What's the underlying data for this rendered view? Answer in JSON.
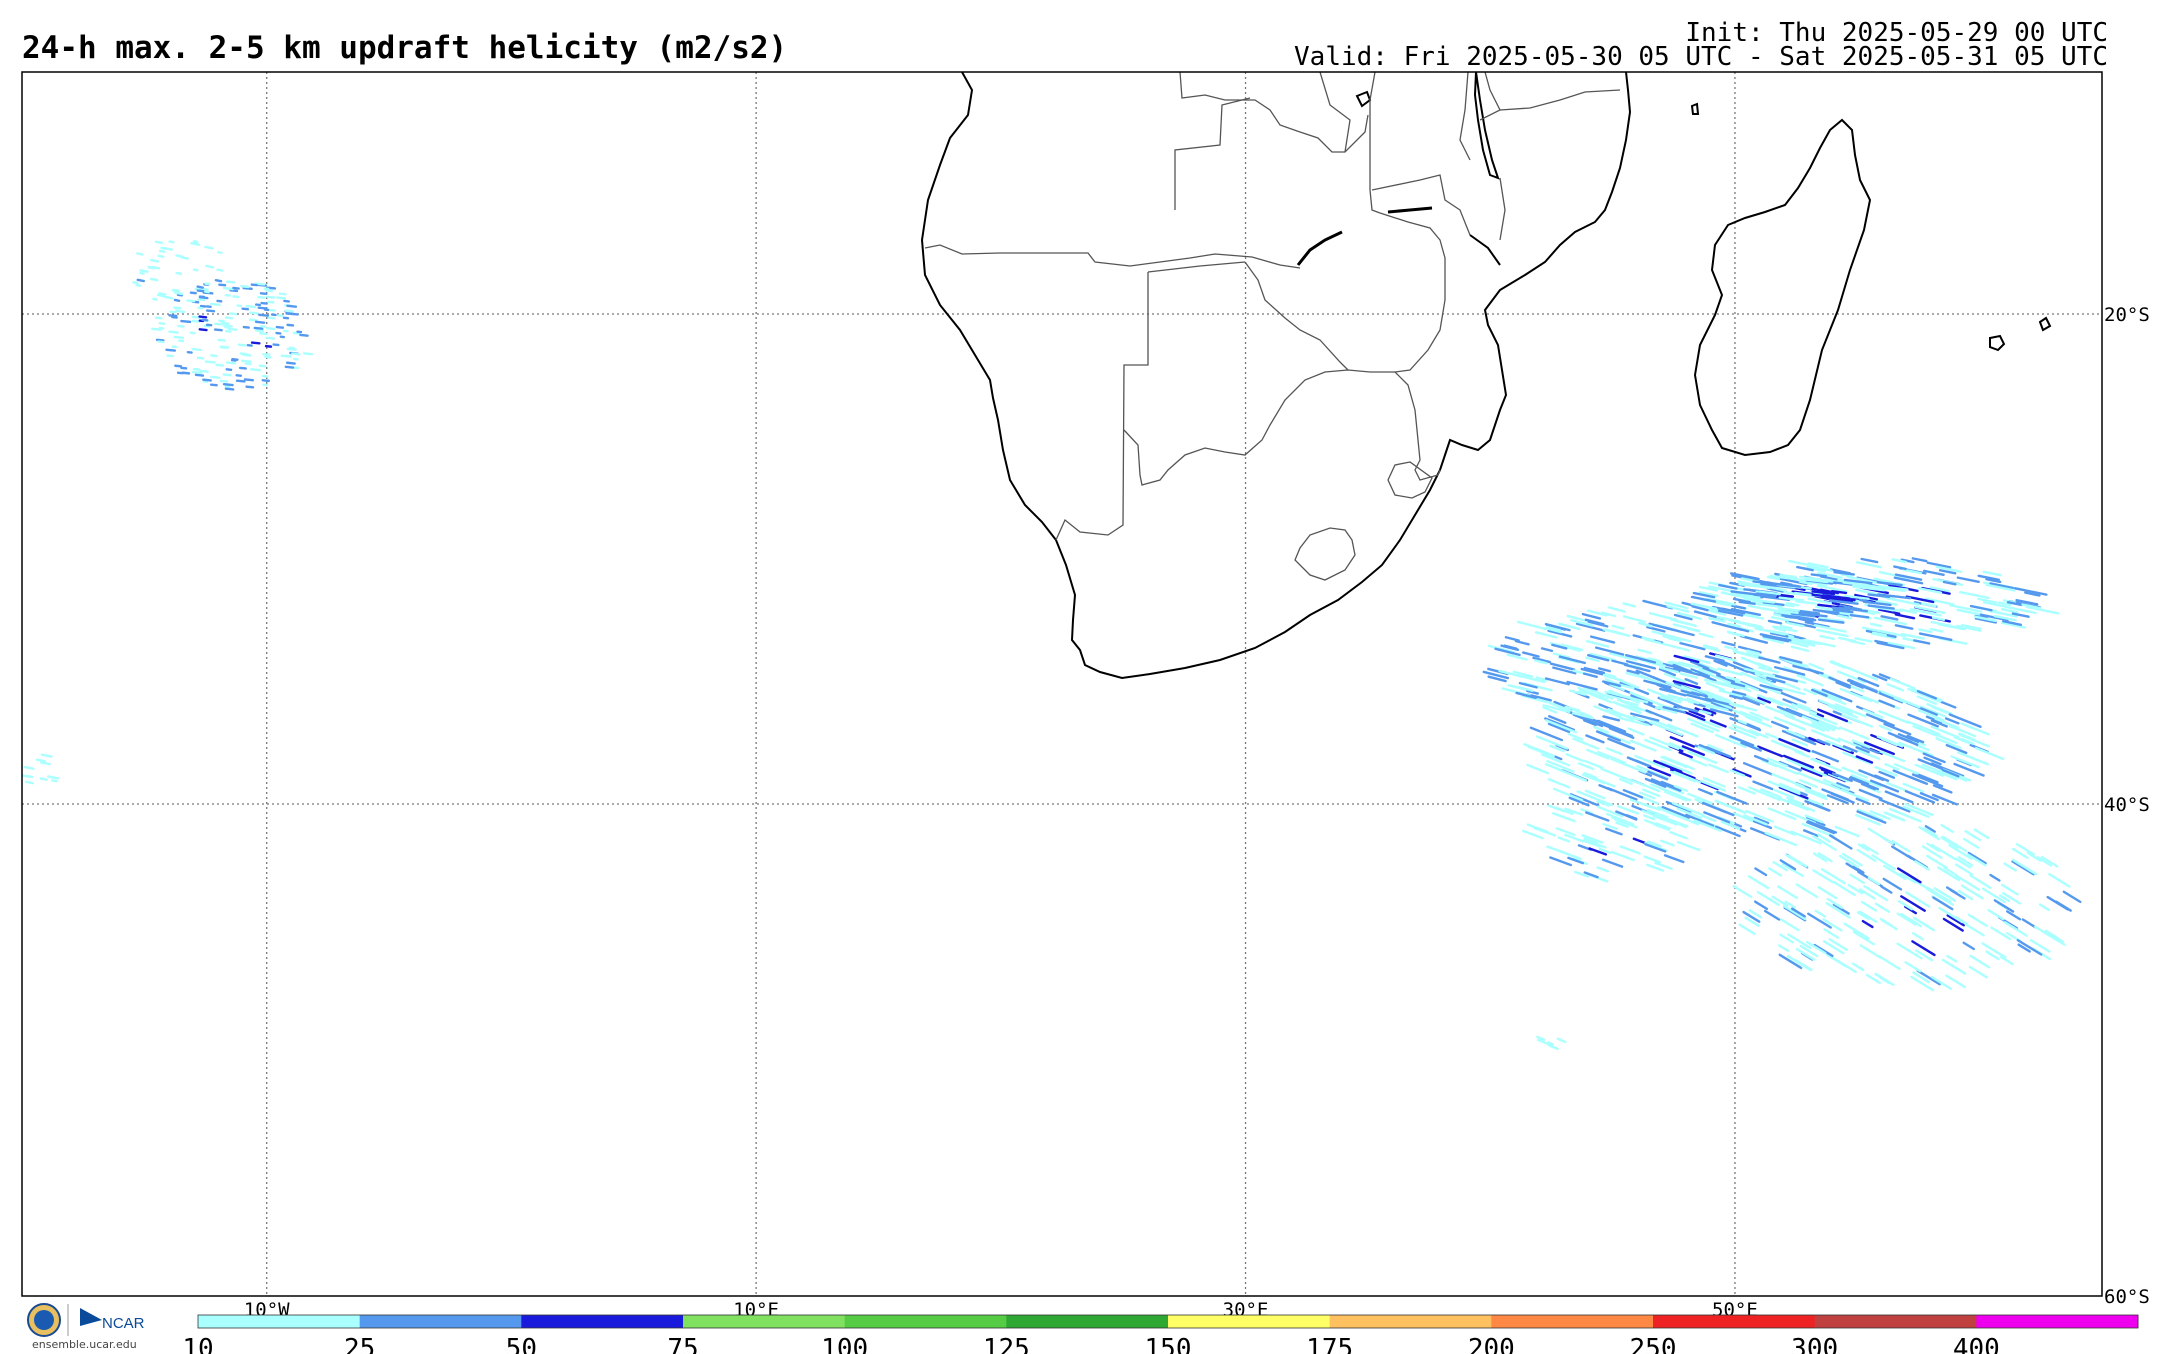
{
  "header": {
    "title": "24-h max. 2-5 km updraft helicity (m2/s2)",
    "init": "Init: Thu 2025-05-29 00 UTC",
    "valid": "Valid: Fri 2025-05-30 05 UTC - Sat 2025-05-31 05 UTC"
  },
  "map": {
    "longitude_range": [
      -20,
      65
    ],
    "latitude_range": [
      -60,
      -10
    ],
    "gridlines": "dotted",
    "lat_labels": [
      {
        "value": -20,
        "label": "20°S"
      },
      {
        "value": -40,
        "label": "40°S"
      },
      {
        "value": -60,
        "label": "60°S"
      }
    ],
    "lon_labels": [
      {
        "value": -10,
        "label": "10°W"
      },
      {
        "value": 10,
        "label": "10°E"
      },
      {
        "value": 30,
        "label": "30°E"
      },
      {
        "value": 50,
        "label": "50°E"
      }
    ],
    "land_outline_color": "#000000",
    "border_color": "#555555"
  },
  "colorbar": {
    "labels": [
      "10",
      "25",
      "50",
      "75",
      "100",
      "125",
      "150",
      "175",
      "200",
      "250",
      "300",
      "400"
    ],
    "colors": [
      "#aaffff",
      "#5599ee",
      "#1a1adc",
      "#80e060",
      "#55cc44",
      "#2ea832",
      "#ffff66",
      "#ffc060",
      "#ff8844",
      "#ee2222",
      "#c04040",
      "#ee00ee"
    ]
  },
  "logos": {
    "nsf": "nsf-logo-icon",
    "ncar": "NCAR",
    "site": "ensemble.ucar.edu"
  }
}
